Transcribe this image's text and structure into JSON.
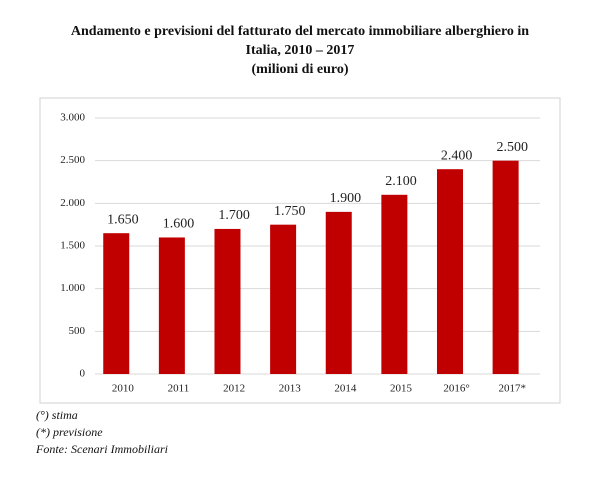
{
  "chart_data": {
    "type": "bar",
    "title": "Andamento e previsioni del fatturato del mercato immobiliare alberghiero in Italia, 2010 – 2017",
    "subtitle": "(milioni di euro)",
    "categories": [
      "2010",
      "2011",
      "2012",
      "2013",
      "2014",
      "2015",
      "2016°",
      "2017*"
    ],
    "values": [
      1650,
      1600,
      1700,
      1750,
      1900,
      2100,
      2400,
      2500
    ],
    "value_labels": [
      "1.650",
      "1.600",
      "1.700",
      "1.750",
      "1.900",
      "2.100",
      "2.400",
      "2.500"
    ],
    "color": "#c00000",
    "ylim": [
      0,
      3000
    ],
    "yticks": [
      0,
      500,
      {
        "value": 1000,
        "label": "1.000"
      },
      {
        "value": 1500,
        "label": "1.500"
      },
      {
        "value": 2000,
        "label": "2.000"
      },
      {
        "value": 2500,
        "label": "2.500"
      },
      {
        "value": 3000,
        "label": "3.000"
      }
    ],
    "grid": true,
    "notes": [
      "(°) stima",
      "(*) previsione",
      "Fonte: Scenari Immobiliari"
    ]
  }
}
